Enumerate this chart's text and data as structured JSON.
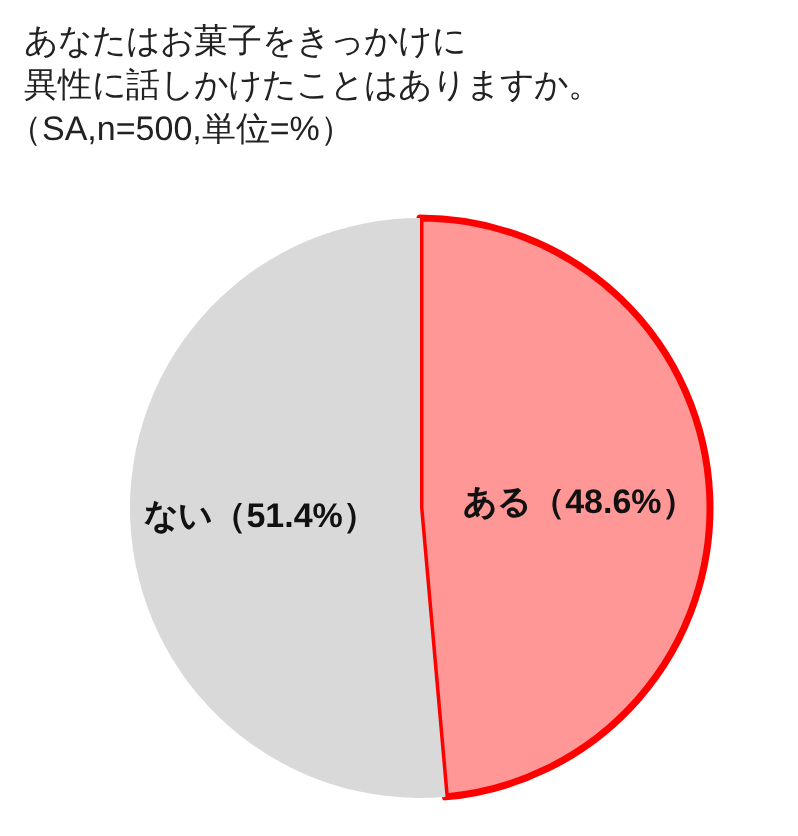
{
  "chart_data": {
    "type": "pie",
    "title": "あなたはお菓子をきっかけに",
    "subtitle": "異性に話しかけたことはありますか。",
    "annotations": [
      "（SA,n=500,単位=%）"
    ],
    "categories": [
      "ある",
      "ない"
    ],
    "values": [
      48.6,
      51.4
    ],
    "value_labels": [
      "（48.6%）",
      "（51.4%）"
    ],
    "colors": [
      "#ff9797",
      "#d9d9d9"
    ]
  }
}
